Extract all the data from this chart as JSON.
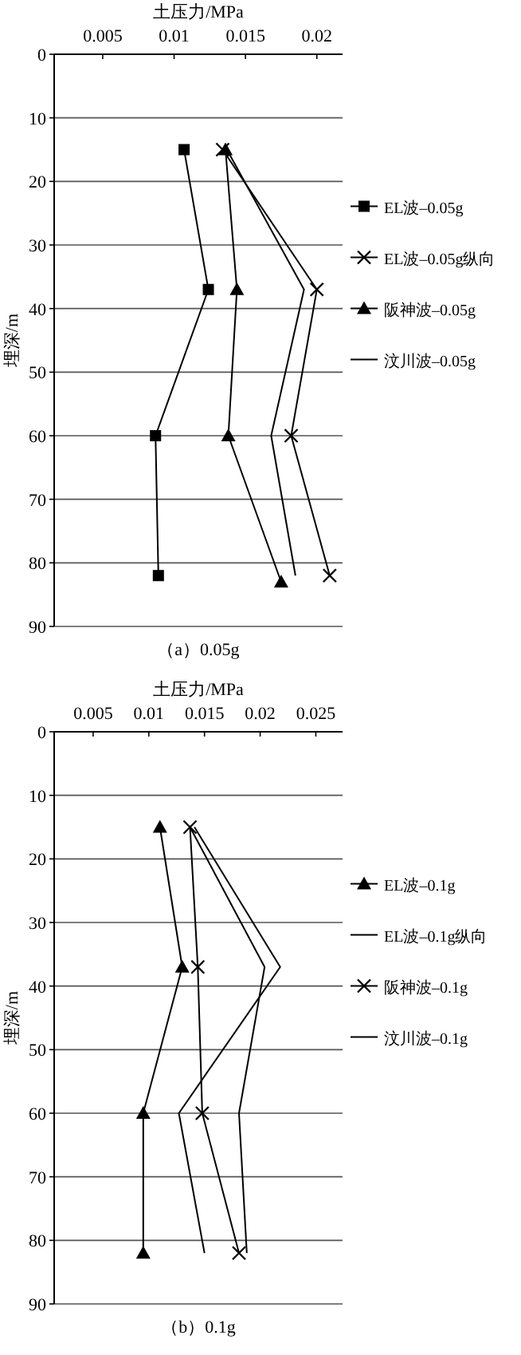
{
  "chart_data": [
    {
      "type": "line",
      "xlabel": "土压力/MPa",
      "ylabel": "埋深/m",
      "annotations": [
        "（a）0.05g"
      ],
      "xlim": [
        0.0016,
        0.0218
      ],
      "xticks": [
        0.005,
        0.01,
        0.015,
        0.02
      ],
      "ylim": [
        90,
        0
      ],
      "yticks": [
        0,
        10,
        20,
        30,
        40,
        50,
        60,
        70,
        80,
        90
      ],
      "grid": "y",
      "legend": "right",
      "series": [
        {
          "name": "EL波–0.05g",
          "color": "#000000",
          "marker": "square",
          "x": [
            0.0107,
            0.0124,
            0.0087,
            0.0089
          ],
          "values": [
            15,
            37,
            60,
            82
          ]
        },
        {
          "name": "EL波–0.05g纵向",
          "color": "#000000",
          "marker": "cross",
          "x": [
            0.0134,
            0.02,
            0.0182,
            0.0209
          ],
          "values": [
            15,
            37,
            60,
            82
          ]
        },
        {
          "name": "阪神波–0.05g",
          "color": "#000000",
          "marker": "triangle",
          "x": [
            0.0136,
            0.0144,
            0.0138,
            0.0175
          ],
          "values": [
            15,
            37,
            60,
            83
          ]
        },
        {
          "name": "汶川波–0.05g",
          "color": "#000000",
          "marker": "none",
          "x": [
            0.0137,
            0.0191,
            0.0168,
            0.0185
          ],
          "values": [
            15,
            37,
            60,
            82
          ]
        }
      ]
    },
    {
      "type": "line",
      "xlabel": "土压力/MPa",
      "ylabel": "埋深/m",
      "annotations": [
        "（b）0.1g"
      ],
      "xlim": [
        0.0015,
        0.0274
      ],
      "xticks": [
        0.005,
        0.01,
        0.015,
        0.02,
        0.025
      ],
      "ylim": [
        90,
        0
      ],
      "yticks": [
        0,
        10,
        20,
        30,
        40,
        50,
        60,
        70,
        80,
        90
      ],
      "grid": "y",
      "legend": "right",
      "series": [
        {
          "name": "EL波–0.1g",
          "color": "#000000",
          "marker": "triangle",
          "x": [
            0.011,
            0.013,
            0.0095,
            0.0095
          ],
          "values": [
            15,
            37,
            60,
            82
          ]
        },
        {
          "name": "EL波–0.1g纵向",
          "color": "#000000",
          "marker": "none",
          "x": [
            0.0141,
            0.0218,
            0.0127,
            0.015
          ],
          "values": [
            15,
            37,
            60,
            82
          ]
        },
        {
          "name": "阪神波–0.1g",
          "color": "#000000",
          "marker": "cross",
          "x": [
            0.0137,
            0.0144,
            0.0148,
            0.0181
          ],
          "values": [
            15,
            37,
            60,
            82
          ]
        },
        {
          "name": "汶川波–0.1g",
          "color": "#000000",
          "marker": "none",
          "x": [
            0.0137,
            0.0204,
            0.0181,
            0.0188
          ],
          "values": [
            15,
            37,
            60,
            82
          ]
        }
      ]
    }
  ]
}
